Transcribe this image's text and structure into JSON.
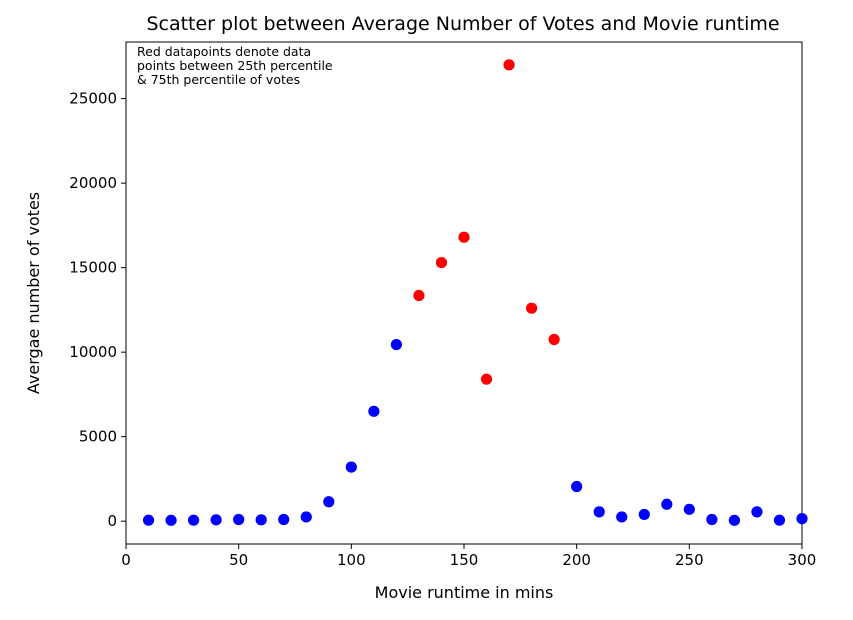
{
  "chart_data": {
    "type": "scatter",
    "title": "Scatter plot between Average Number of Votes and Movie runtime",
    "xlabel": "Movie runtime in mins",
    "ylabel": "Avergae number of votes",
    "xlim": [
      0,
      300
    ],
    "ylim": [
      -1350,
      28350
    ],
    "xticks": [
      0,
      50,
      100,
      150,
      200,
      250,
      300
    ],
    "yticks": [
      0,
      5000,
      10000,
      15000,
      20000,
      25000
    ],
    "grid": false,
    "annotation": {
      "lines": [
        "Red datapoints denote data",
        "points between 25th percentile",
        "& 75th percentile of votes"
      ]
    },
    "series": [
      {
        "color": "#0000ff",
        "x": [
          10,
          20,
          30,
          40,
          50,
          60,
          70,
          80,
          90,
          100,
          110,
          120,
          200,
          210,
          220,
          230,
          240,
          250,
          260,
          270,
          280,
          290,
          300
        ],
        "y": [
          60,
          50,
          60,
          80,
          100,
          80,
          100,
          250,
          1150,
          3200,
          6500,
          10450,
          2050,
          550,
          250,
          400,
          1000,
          700,
          100,
          50,
          550,
          60,
          150
        ]
      },
      {
        "color": "#ff0000",
        "x": [
          130,
          140,
          150,
          160,
          170,
          180,
          190
        ],
        "y": [
          13350,
          15300,
          16800,
          8400,
          27000,
          12600,
          10750
        ]
      }
    ]
  }
}
